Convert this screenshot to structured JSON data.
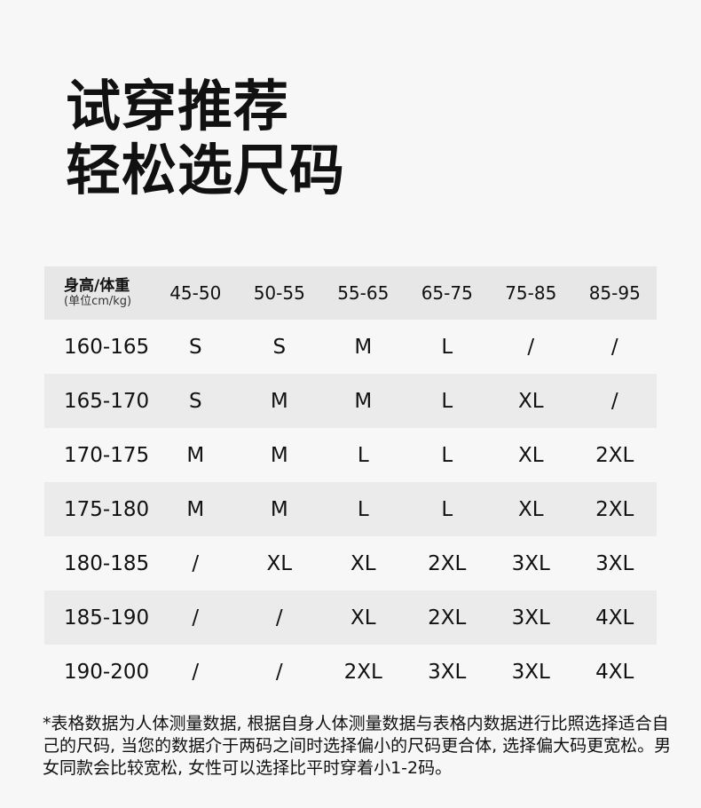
{
  "title": {
    "line1": "试穿推荐",
    "line2": "轻松选尺码"
  },
  "table": {
    "header_main": "身高/体重",
    "header_sub": "(单位cm/kg)",
    "columns": [
      "45-50",
      "50-55",
      "55-65",
      "65-75",
      "75-85",
      "85-95"
    ],
    "rows": [
      {
        "height": "160-165",
        "sizes": [
          "S",
          "S",
          "M",
          "L",
          "/",
          "/"
        ]
      },
      {
        "height": "165-170",
        "sizes": [
          "S",
          "M",
          "M",
          "L",
          "XL",
          "/"
        ]
      },
      {
        "height": "170-175",
        "sizes": [
          "M",
          "M",
          "L",
          "L",
          "XL",
          "2XL"
        ]
      },
      {
        "height": "175-180",
        "sizes": [
          "M",
          "M",
          "L",
          "L",
          "XL",
          "2XL"
        ]
      },
      {
        "height": "180-185",
        "sizes": [
          "/",
          "XL",
          "XL",
          "2XL",
          "3XL",
          "3XL"
        ]
      },
      {
        "height": "185-190",
        "sizes": [
          "/",
          "/",
          "XL",
          "2XL",
          "3XL",
          "4XL"
        ]
      },
      {
        "height": "190-200",
        "sizes": [
          "/",
          "/",
          "2XL",
          "3XL",
          "3XL",
          "4XL"
        ]
      }
    ]
  },
  "footnote": "*表格数据为人体测量数据, 根据自身人体测量数据与表格内数据进行比照选择适合自己的尺码, 当您的数据介于两码之间时选择偏小的尺码更合体, 选择偏大码更宽松。男女同款会比较宽松, 女性可以选择比平时穿着小1-2码。"
}
